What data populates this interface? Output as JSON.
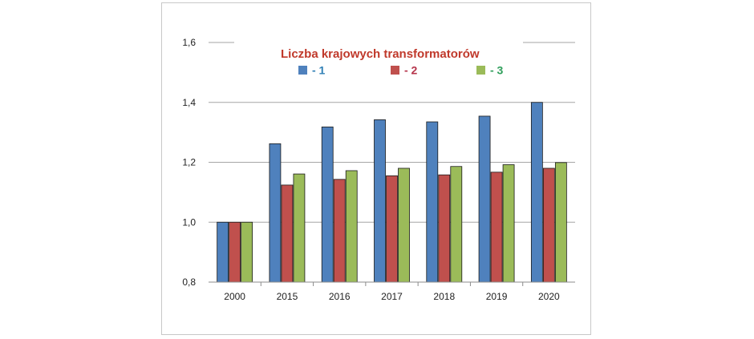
{
  "chart_data": {
    "type": "bar",
    "title": "Liczba  krajowych transformatorów",
    "categories": [
      "2000",
      "2015",
      "2016",
      "2017",
      "2018",
      "2019",
      "2020"
    ],
    "series": [
      {
        "name": "- 1",
        "color": "#4f81bd",
        "label_color": "#2f7fb5",
        "values": [
          1.0,
          1.262,
          1.318,
          1.342,
          1.335,
          1.354,
          1.4
        ]
      },
      {
        "name": "- 2",
        "color": "#c0504d",
        "label_color": "#b5334a",
        "values": [
          1.0,
          1.124,
          1.143,
          1.155,
          1.158,
          1.167,
          1.18
        ]
      },
      {
        "name": "- 3",
        "color": "#9bbb59",
        "label_color": "#2e9e5a",
        "values": [
          1.0,
          1.161,
          1.172,
          1.18,
          1.186,
          1.192,
          1.199
        ]
      }
    ],
    "yticks": [
      "0,8",
      "1,0",
      "1,2",
      "1,4",
      "1,6"
    ],
    "ytick_values": [
      0.8,
      1.0,
      1.2,
      1.4,
      1.6
    ],
    "ylim": [
      0.8,
      1.6
    ],
    "grid": true,
    "legend_position": "top",
    "colors": {
      "title": "#c0392b"
    }
  }
}
